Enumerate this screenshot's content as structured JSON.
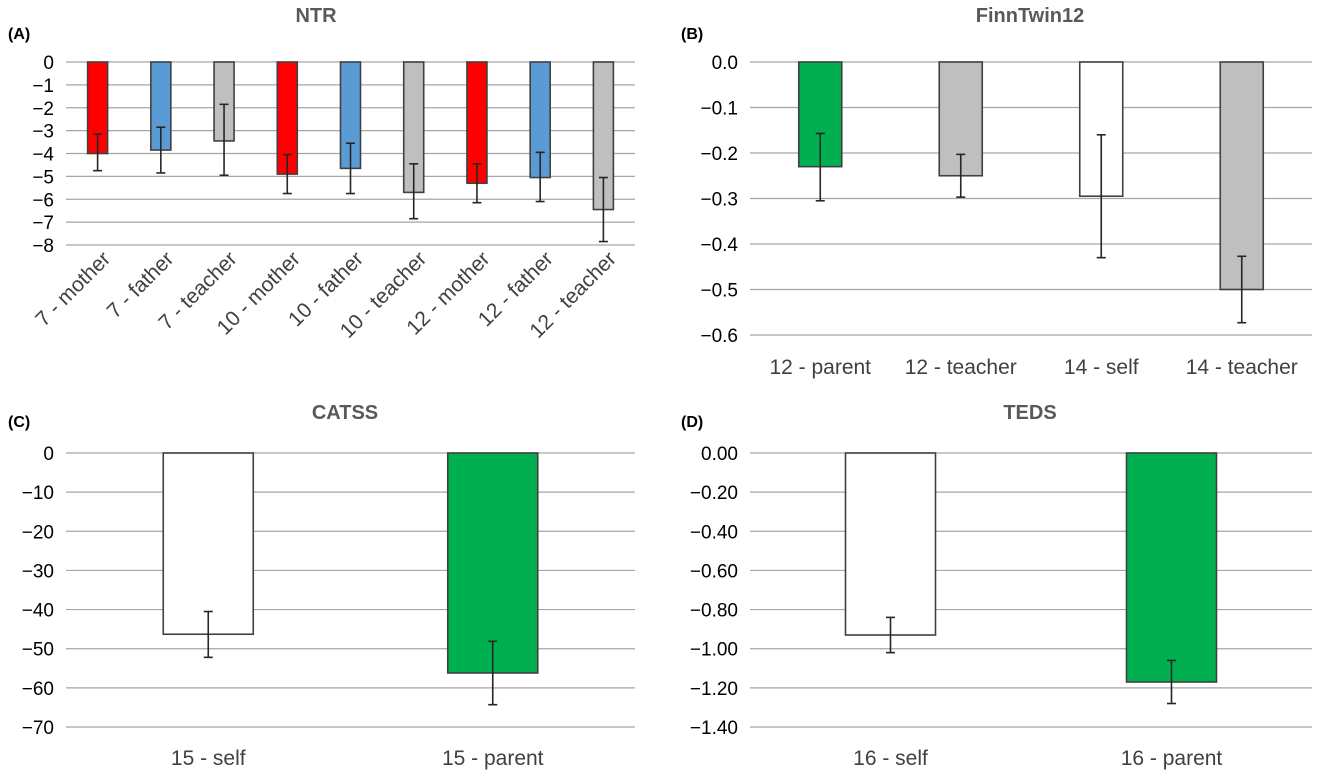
{
  "chart_data": [
    {
      "type": "bar",
      "panel_label": "(A)",
      "title": "NTR",
      "categories": [
        "7 - mother",
        "7 - father",
        "7 - teacher",
        "10 - mother",
        "10 - father",
        "10 - teacher",
        "12 - mother",
        "12 - father",
        "12 - teacher"
      ],
      "values": [
        -4.0,
        -3.85,
        -3.45,
        -4.9,
        -4.65,
        -5.7,
        -5.3,
        -5.05,
        -6.45
      ],
      "error_low": [
        -4.75,
        -4.85,
        -4.95,
        -5.75,
        -5.75,
        -6.85,
        -6.15,
        -6.1,
        -7.85
      ],
      "error_high": [
        -3.15,
        -2.85,
        -1.85,
        -4.05,
        -3.55,
        -4.45,
        -4.45,
        -3.95,
        -5.05
      ],
      "bar_colors": [
        "#ff0000",
        "#5b9bd5",
        "#bfbfbf",
        "#ff0000",
        "#5b9bd5",
        "#bfbfbf",
        "#ff0000",
        "#5b9bd5",
        "#bfbfbf"
      ],
      "ylim": [
        -8,
        0
      ],
      "yticks": [
        0,
        -1,
        -2,
        -3,
        -4,
        -5,
        -6,
        -7,
        -8
      ],
      "ytick_labels": [
        "0",
        "−1",
        "−2",
        "−3",
        "−4",
        "−5",
        "−6",
        "−7",
        "−8"
      ],
      "grid": true
    },
    {
      "type": "bar",
      "panel_label": "(B)",
      "title": "FinnTwin12",
      "categories": [
        "12 - parent",
        "12 - teacher",
        "14 - self",
        "14 - teacher"
      ],
      "values": [
        -0.23,
        -0.25,
        -0.295,
        -0.5
      ],
      "error_low": [
        -0.305,
        -0.297,
        -0.43,
        -0.573
      ],
      "error_high": [
        -0.157,
        -0.203,
        -0.16,
        -0.427
      ],
      "bar_colors": [
        "#00b050",
        "#bfbfbf",
        "#ffffff",
        "#bfbfbf"
      ],
      "ylim": [
        -0.6,
        0
      ],
      "yticks": [
        0,
        -0.1,
        -0.2,
        -0.3,
        -0.4,
        -0.5,
        -0.6
      ],
      "ytick_labels": [
        "0.0",
        "−0.1",
        "−0.2",
        "−0.3",
        "−0.4",
        "−0.5",
        "−0.6"
      ],
      "grid": true
    },
    {
      "type": "bar",
      "panel_label": "(C)",
      "title": "CATSS",
      "categories": [
        "15 - self",
        "15 - parent"
      ],
      "values": [
        -46.3,
        -56.2
      ],
      "error_low": [
        -52.2,
        -64.3
      ],
      "error_high": [
        -40.5,
        -48.1
      ],
      "bar_colors": [
        "#ffffff",
        "#00b050"
      ],
      "ylim": [
        -70,
        0
      ],
      "yticks": [
        0,
        -10,
        -20,
        -30,
        -40,
        -50,
        -60,
        -70
      ],
      "ytick_labels": [
        "0",
        "−10",
        "−20",
        "−30",
        "−40",
        "−50",
        "−60",
        "−70"
      ],
      "grid": true
    },
    {
      "type": "bar",
      "panel_label": "(D)",
      "title": "TEDS",
      "categories": [
        "16 - self",
        "16 - parent"
      ],
      "values": [
        -0.93,
        -1.17
      ],
      "error_low": [
        -1.02,
        -1.28
      ],
      "error_high": [
        -0.84,
        -1.06
      ],
      "bar_colors": [
        "#ffffff",
        "#00b050"
      ],
      "ylim": [
        -1.4,
        0
      ],
      "yticks": [
        0,
        -0.2,
        -0.4,
        -0.6,
        -0.8,
        -1.0,
        -1.2,
        -1.4
      ],
      "ytick_labels": [
        "0.00",
        "−0.20",
        "−0.40",
        "−0.60",
        "−0.80",
        "−1.00",
        "−1.20",
        "−1.40"
      ],
      "grid": true
    }
  ]
}
